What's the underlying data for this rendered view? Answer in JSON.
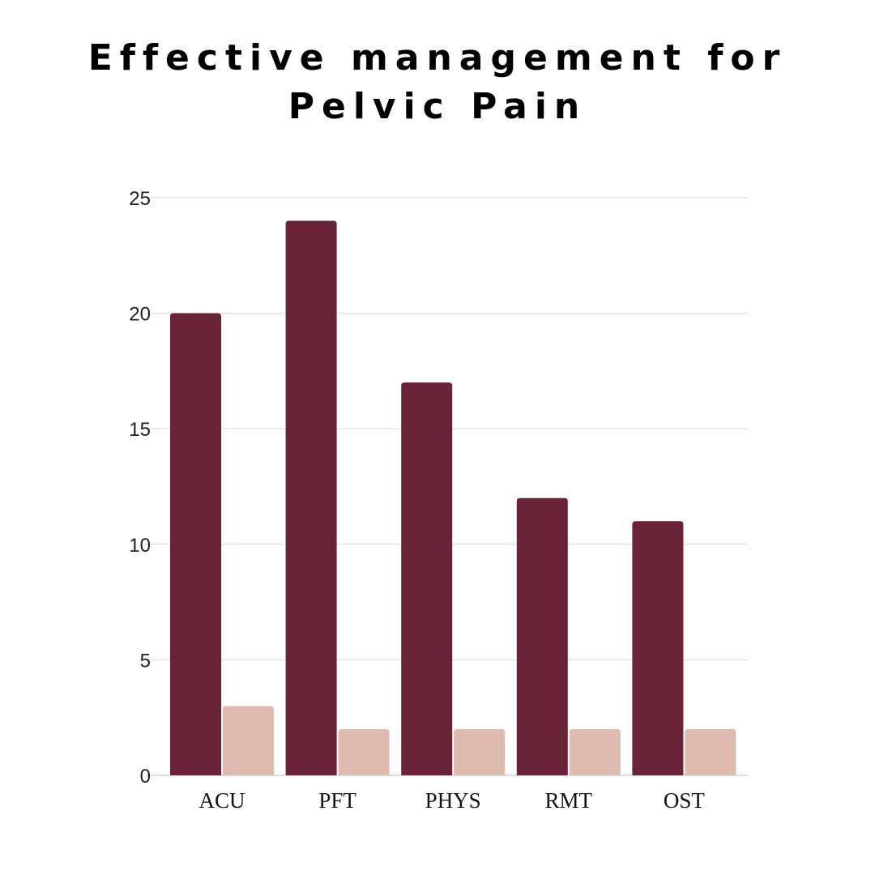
{
  "chart_data": {
    "type": "bar",
    "title_lines": [
      "Effective management for",
      "Pelvic Pain"
    ],
    "categories": [
      "ACU",
      "PFT",
      "PHYS",
      "RMT",
      "OST"
    ],
    "series": [
      {
        "values": [
          20,
          24,
          17,
          12,
          11
        ],
        "color": "#6a2336"
      },
      {
        "values": [
          3,
          2,
          2,
          2,
          2
        ],
        "color": "#dfbbaf"
      }
    ],
    "yticks": [
      "0",
      "5",
      "10",
      "15",
      "20",
      "25"
    ],
    "ylim": [
      0,
      25
    ],
    "xlabel": "",
    "ylabel": "",
    "grid": true,
    "gridline_color": "#d6d6d6",
    "legend": "none"
  }
}
